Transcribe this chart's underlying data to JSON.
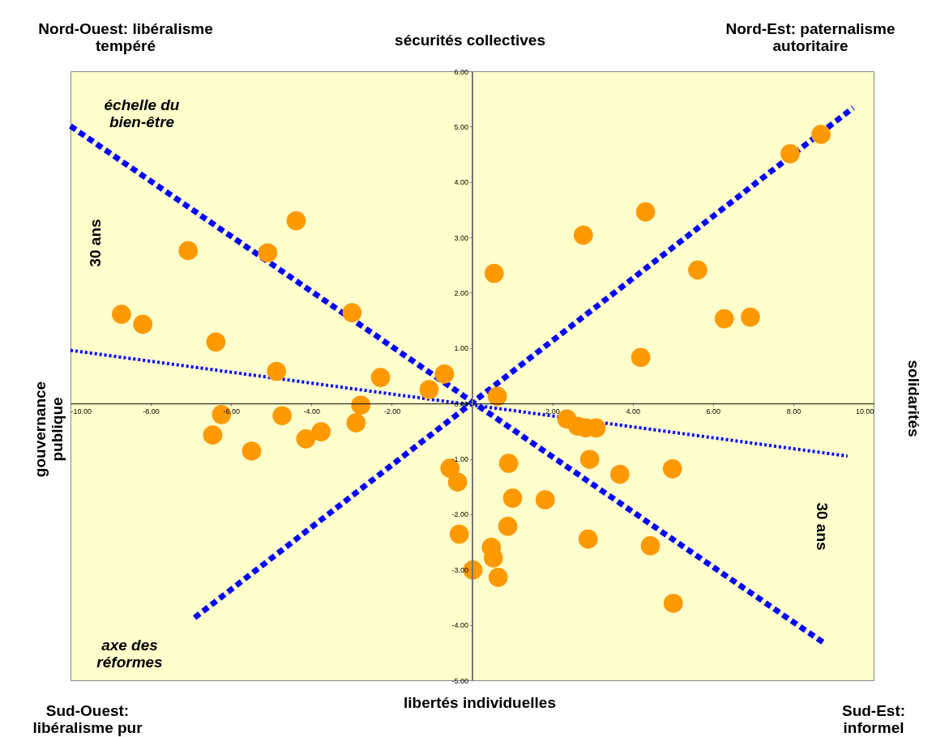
{
  "chart_data": {
    "type": "scatter",
    "title": "sécurités collectives",
    "xlabel": "libertés individuelles",
    "ylabel": "gouvernance\npublique",
    "xlim": [
      -10,
      10
    ],
    "ylim": [
      -5,
      6
    ],
    "xticks": [
      {
        "value": -10,
        "label": "-10.00"
      },
      {
        "value": -8,
        "label": "-8.00"
      },
      {
        "value": -6,
        "label": "-6.00"
      },
      {
        "value": -4,
        "label": "-4.00"
      },
      {
        "value": -2,
        "label": "-2.00"
      },
      {
        "value": 0,
        "label": null
      },
      {
        "value": 2,
        "label": "2.00"
      },
      {
        "value": 4,
        "label": "4.00"
      },
      {
        "value": 6,
        "label": "6.00"
      },
      {
        "value": 8,
        "label": "8.00"
      },
      {
        "value": 10,
        "label": "10.00"
      }
    ],
    "yticks": [
      {
        "value": -5,
        "label": "-5.00"
      },
      {
        "value": -4,
        "label": "-4.00"
      },
      {
        "value": -3,
        "label": "-3.00"
      },
      {
        "value": -2,
        "label": "-2.00"
      },
      {
        "value": -1,
        "label": "-1.00"
      },
      {
        "value": 0,
        "label": "0.00"
      },
      {
        "value": 1,
        "label": "1.00"
      },
      {
        "value": 2,
        "label": "2.00"
      },
      {
        "value": 3,
        "label": "3.00"
      },
      {
        "value": 4,
        "label": "4.00"
      },
      {
        "value": 5,
        "label": "5.00"
      },
      {
        "value": 6,
        "label": "6.00"
      }
    ],
    "series": [
      {
        "type": "scatter",
        "marker": "circle",
        "color": "#ff9900",
        "x": [
          8.69,
          7.92,
          4.32,
          2.77,
          5.62,
          0.55,
          6.28,
          6.93,
          4.2,
          0.63,
          -4.38,
          -7.07,
          -5.09,
          -8.73,
          -8.2,
          -2.99,
          -6.38,
          -4.87,
          -2.28,
          -0.69,
          -1.07,
          -2.77,
          -6.24,
          -6.46,
          -4.73,
          -5.49,
          -4.14,
          -3.76,
          -2.89,
          2.36,
          2.63,
          2.83,
          3.09,
          2.93,
          3.68,
          4.99,
          -0.55,
          -0.36,
          0.91,
          1.01,
          1.82,
          0.89,
          -0.32,
          0.48,
          0.53,
          0.02,
          0.65,
          2.89,
          4.44,
          5.01
        ],
        "values": [
          4.86,
          4.51,
          3.46,
          3.04,
          2.41,
          2.35,
          1.53,
          1.56,
          0.83,
          0.13,
          3.3,
          2.76,
          2.72,
          1.61,
          1.43,
          1.64,
          1.11,
          0.58,
          0.47,
          0.53,
          0.25,
          -0.03,
          -0.2,
          -0.57,
          -0.22,
          -0.86,
          -0.64,
          -0.51,
          -0.35,
          -0.28,
          -0.41,
          -0.44,
          -0.44,
          -1.01,
          -1.28,
          -1.18,
          -1.17,
          -1.42,
          -1.08,
          -1.71,
          -1.74,
          -2.22,
          -2.36,
          -2.6,
          -2.79,
          -3.01,
          -3.14,
          -2.45,
          -2.57,
          -3.61
        ]
      },
      {
        "type": "line",
        "marker": "none",
        "color": "#0000ff",
        "line_style": "dashed",
        "x": [
          -6.91,
          9.49
        ],
        "values": [
          -3.87,
          5.34
        ]
      },
      {
        "type": "line",
        "marker": "none",
        "color": "#0000ff",
        "line_style": "dashed",
        "x": [
          -10,
          8.81
        ],
        "values": [
          5.01,
          -4.35
        ]
      },
      {
        "type": "line",
        "marker": "none",
        "color": "#0000ff",
        "line_style": "dotted",
        "x": [
          -10,
          9.35
        ],
        "values": [
          0.96,
          -0.95
        ]
      }
    ],
    "annotations": [
      "Nord-Ouest: libéralisme\ntempéré",
      "Nord-Est: paternalisme\nautoritaire",
      "Sud-Ouest:\nlibéralisme pur",
      "Sud-Est:\ninformel",
      "échelle du\nbien-être",
      "axe des\nréformes",
      "30 ans",
      "30 ans",
      "solidarités"
    ]
  }
}
